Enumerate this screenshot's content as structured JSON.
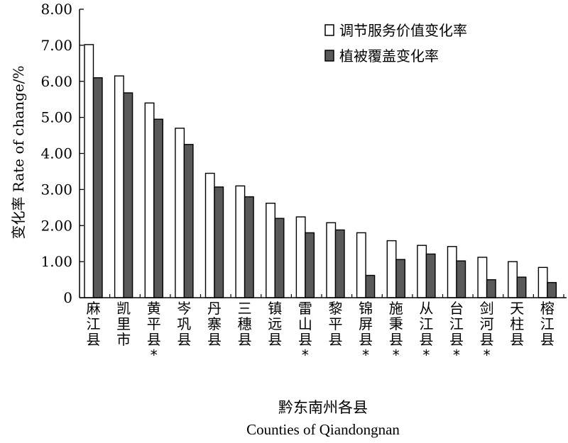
{
  "chart_data": {
    "type": "bar",
    "ylabel": "变化率 Rate of change/%",
    "xlabel_cn": "黔东南州各县",
    "xlabel_en": "Counties of  Qiandongnan",
    "ylim": [
      0,
      8
    ],
    "yticks": [
      "0",
      "1.00",
      "2.00",
      "3.00",
      "4.00",
      "5.00",
      "6.00",
      "7.00",
      "8.00"
    ],
    "grid": false,
    "legend_position": "top-right",
    "categories": [
      "麻江县",
      "凯里市",
      "黄平县*",
      "岑巩县",
      "丹寨县",
      "三穗县",
      "镇远县",
      "雷山县*",
      "黎平县",
      "锦屏县*",
      "施秉县*",
      "从江县*",
      "台江县*",
      "剑河县*",
      "天柱县",
      "榕江县"
    ],
    "series": [
      {
        "name": "调节服务价值变化率",
        "color": "#ffffff",
        "values": [
          7.02,
          6.15,
          5.4,
          4.7,
          3.45,
          3.1,
          2.62,
          2.24,
          2.08,
          1.8,
          1.58,
          1.45,
          1.42,
          1.12,
          1.0,
          0.84
        ]
      },
      {
        "name": "植被覆盖变化率",
        "color": "#595959",
        "values": [
          6.1,
          5.68,
          4.95,
          4.25,
          3.07,
          2.8,
          2.2,
          1.8,
          1.88,
          0.62,
          1.06,
          1.21,
          1.02,
          0.5,
          0.57,
          0.42
        ]
      }
    ]
  }
}
